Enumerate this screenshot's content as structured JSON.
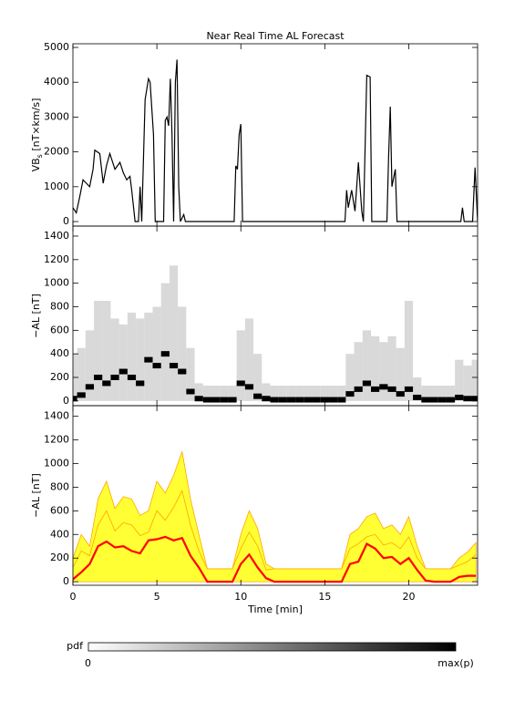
{
  "chart_data": [
    {
      "type": "line",
      "title": "Near Real Time AL Forecast",
      "ylabel": "VB",
      "ylabel_sub": "s",
      "ylabel_rest": " [nT×km/s]",
      "x": [
        0,
        0.2,
        0.4,
        0.6,
        0.8,
        1.0,
        1.2,
        1.3,
        1.6,
        1.8,
        2.0,
        2.2,
        2.5,
        2.8,
        3.0,
        3.2,
        3.4,
        3.5,
        3.7,
        3.9,
        4.0,
        4.1,
        4.3,
        4.5,
        4.6,
        4.8,
        4.9,
        5.4,
        5.5,
        5.6,
        5.7,
        5.8,
        5.9,
        6.0,
        6.1,
        6.2,
        6.3,
        6.4,
        6.6,
        6.7,
        9.6,
        9.7,
        9.8,
        9.9,
        10.0,
        10.1,
        16.2,
        16.3,
        16.4,
        16.6,
        16.8,
        17.0,
        17.2,
        17.3,
        17.5,
        17.7,
        17.8,
        18.7,
        18.8,
        18.9,
        19.0,
        19.2,
        19.3,
        23.1,
        23.2,
        23.3,
        23.8,
        23.95,
        24.1
      ],
      "values": [
        400,
        250,
        700,
        1200,
        1100,
        1000,
        1500,
        2050,
        1950,
        1100,
        1600,
        1950,
        1500,
        1700,
        1400,
        1200,
        1300,
        900,
        0,
        0,
        1000,
        0,
        3500,
        4100,
        4000,
        2500,
        0,
        0,
        2900,
        3000,
        2750,
        4100,
        2500,
        0,
        4000,
        4650,
        1000,
        0,
        200,
        0,
        0,
        1600,
        1500,
        2500,
        2800,
        0,
        0,
        900,
        400,
        900,
        300,
        1700,
        300,
        0,
        4200,
        4150,
        0,
        0,
        1900,
        3300,
        1000,
        1500,
        0,
        0,
        400,
        0,
        0,
        1550,
        0
      ],
      "color": "#000000",
      "xlim": [
        0,
        24.1
      ],
      "ylim": [
        -130,
        5105
      ],
      "xticks": [
        0,
        5,
        10,
        15,
        20
      ],
      "yticks": [
        0,
        1000,
        2000,
        3000,
        4000,
        5000
      ],
      "xtick_labels": false
    },
    {
      "type": "column",
      "ylabel": "−AL [nT]",
      "x": [
        0,
        0.5,
        1,
        1.5,
        2,
        2.5,
        3,
        3.5,
        4,
        4.5,
        5,
        5.5,
        6,
        6.5,
        7,
        7.5,
        8,
        8.5,
        9,
        9.5,
        10,
        10.5,
        11,
        11.5,
        12,
        12.5,
        13,
        13.5,
        14,
        14.5,
        15,
        15.5,
        16,
        16.5,
        17,
        17.5,
        18,
        18.5,
        19,
        19.5,
        20,
        20.5,
        21,
        21.5,
        22,
        22.5,
        23,
        23.5,
        24
      ],
      "series": [
        {
          "color": "#cfcfcf",
          "values": [
            400,
            450,
            600,
            850,
            850,
            700,
            650,
            750,
            700,
            750,
            800,
            1000,
            1150,
            800,
            450,
            150,
            130,
            130,
            130,
            130,
            600,
            700,
            400,
            150,
            130,
            130,
            130,
            130,
            130,
            130,
            130,
            130,
            130,
            400,
            500,
            600,
            550,
            500,
            550,
            450,
            850,
            200,
            130,
            130,
            130,
            130,
            350,
            300,
            350
          ]
        },
        {
          "color": "#000000",
          "values": [
            20,
            50,
            120,
            200,
            150,
            200,
            250,
            200,
            150,
            350,
            300,
            400,
            300,
            250,
            80,
            20,
            10,
            10,
            10,
            10,
            150,
            120,
            40,
            20,
            10,
            10,
            10,
            10,
            10,
            10,
            10,
            10,
            10,
            60,
            100,
            150,
            100,
            120,
            100,
            60,
            100,
            30,
            10,
            10,
            10,
            10,
            30,
            20,
            20
          ]
        }
      ],
      "xlim": [
        0,
        24.1
      ],
      "ylim": [
        -40,
        1485
      ],
      "xticks": [
        0,
        5,
        10,
        15,
        20
      ],
      "yticks": [
        0,
        200,
        400,
        600,
        800,
        1000,
        1200,
        1400
      ],
      "xtick_labels": false
    },
    {
      "type": "area",
      "ylabel": "−AL [nT]",
      "xlabel": "Time [min]",
      "x": [
        0,
        0.5,
        1,
        1.5,
        2,
        2.5,
        3,
        3.5,
        4,
        4.5,
        5,
        5.5,
        6,
        6.5,
        7,
        7.5,
        8,
        8.5,
        9,
        9.5,
        10,
        10.5,
        11,
        11.5,
        12,
        12.5,
        13,
        13.5,
        14,
        14.5,
        15,
        15.5,
        16,
        16.5,
        17,
        17.5,
        18,
        18.5,
        19,
        19.5,
        20,
        20.5,
        21,
        21.5,
        22,
        22.5,
        23,
        23.5,
        24
      ],
      "series": [
        {
          "color": "#ffff33",
          "line_color": "#ffa500",
          "values": [
            200,
            400,
            300,
            700,
            850,
            620,
            720,
            700,
            560,
            600,
            850,
            750,
            900,
            1100,
            700,
            400,
            110,
            110,
            110,
            110,
            400,
            600,
            450,
            150,
            110,
            110,
            110,
            110,
            110,
            110,
            110,
            110,
            110,
            400,
            450,
            550,
            580,
            450,
            480,
            400,
            550,
            300,
            110,
            110,
            110,
            110,
            200,
            250,
            330
          ]
        },
        {
          "color": "#ffa500",
          "values": [
            120,
            260,
            220,
            480,
            600,
            430,
            500,
            480,
            390,
            420,
            600,
            520,
            630,
            770,
            480,
            260,
            110,
            110,
            110,
            110,
            280,
            420,
            300,
            100,
            110,
            110,
            110,
            110,
            110,
            110,
            110,
            110,
            110,
            280,
            320,
            380,
            400,
            310,
            330,
            280,
            380,
            200,
            110,
            110,
            110,
            110,
            140,
            170,
            230
          ]
        },
        {
          "color": "#ff0000",
          "values": [
            20,
            80,
            150,
            300,
            340,
            290,
            300,
            260,
            240,
            350,
            360,
            380,
            350,
            370,
            220,
            120,
            0,
            0,
            0,
            0,
            150,
            230,
            120,
            30,
            0,
            0,
            0,
            0,
            0,
            0,
            0,
            0,
            0,
            150,
            170,
            320,
            280,
            200,
            210,
            150,
            200,
            100,
            10,
            0,
            0,
            0,
            40,
            50,
            50
          ]
        }
      ],
      "xlim": [
        0,
        24.1
      ],
      "ylim": [
        -30,
        1490
      ],
      "xticks": [
        0,
        5,
        10,
        15,
        20
      ],
      "yticks": [
        0,
        200,
        400,
        600,
        800,
        1000,
        1200,
        1400
      ],
      "xtick_labels": true
    }
  ],
  "colorbar": {
    "label": "pdf",
    "min_label": "0",
    "max_label": "max(p)"
  }
}
